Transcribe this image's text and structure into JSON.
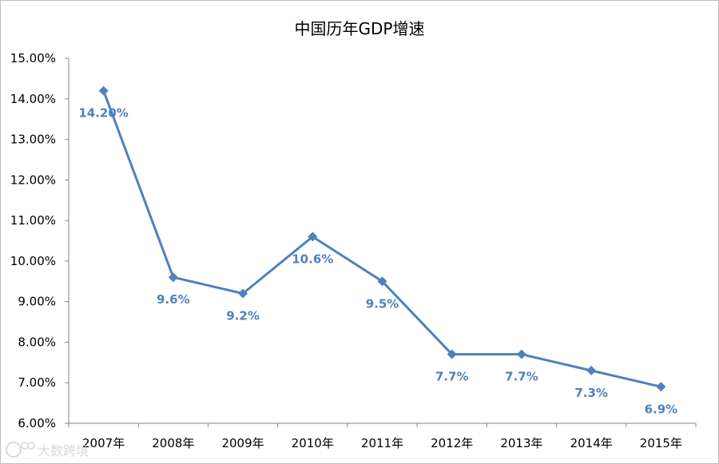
{
  "chart_data": {
    "type": "line",
    "title": "中国历年GDP增速",
    "categories": [
      "2007年",
      "2008年",
      "2009年",
      "2010年",
      "2011年",
      "2012年",
      "2013年",
      "2014年",
      "2015年"
    ],
    "series": [
      {
        "values": [
          14.2,
          9.6,
          9.2,
          10.6,
          9.5,
          7.7,
          7.7,
          7.3,
          6.9
        ],
        "data_labels": [
          "14.20%",
          "9.6%",
          "9.2%",
          "10.6%",
          "9.5%",
          "7.7%",
          "7.7%",
          "7.3%",
          "6.9%"
        ],
        "color": "#4f81bd",
        "marker": "diamond"
      }
    ],
    "ylim": [
      6,
      15
    ],
    "yticks": [
      6,
      7,
      8,
      9,
      10,
      11,
      12,
      13,
      14,
      15
    ],
    "ytick_labels": [
      "6.00%",
      "7.00%",
      "8.00%",
      "9.00%",
      "10.00%",
      "11.00%",
      "12.00%",
      "13.00%",
      "14.00%",
      "15.00%"
    ],
    "grid": false,
    "legend": "none",
    "xlabel": "",
    "ylabel": ""
  },
  "watermark": {
    "text": "大数跨境"
  },
  "colors": {
    "series": "#4f81bd",
    "data_label": "#4f81bd",
    "axis": "#868686"
  }
}
